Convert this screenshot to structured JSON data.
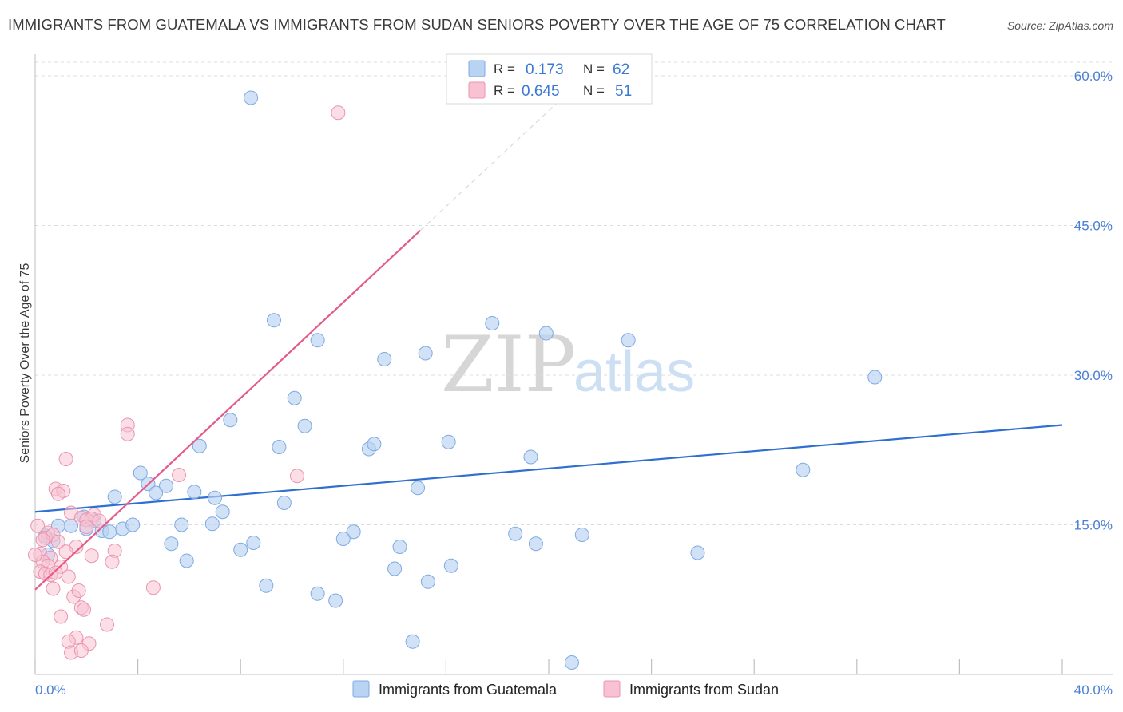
{
  "title": "IMMIGRANTS FROM GUATEMALA VS IMMIGRANTS FROM SUDAN SENIORS POVERTY OVER THE AGE OF 75 CORRELATION CHART",
  "source": "Source: ZipAtlas.com",
  "watermark": {
    "part1": "ZIP",
    "part2": "atlas"
  },
  "colors": {
    "guatemala_fill": "#b9d3f2",
    "guatemala_stroke": "#7eaae3",
    "guatemala_line": "#2f6fcf",
    "sudan_fill": "#f8c2d2",
    "sudan_stroke": "#eb94b1",
    "sudan_line": "#e45b8b",
    "tick_label": "#4a7fd6",
    "grid": "#dcdcdc"
  },
  "chart_data": {
    "type": "scatter",
    "title": "IMMIGRANTS FROM GUATEMALA VS IMMIGRANTS FROM SUDAN SENIORS POVERTY OVER THE AGE OF 75 CORRELATION CHART",
    "xlabel": "",
    "ylabel": "Seniors Poverty Over the Age of 75",
    "xlim": [
      0,
      40
    ],
    "ylim": [
      0,
      61.2
    ],
    "x_tick_labels": {
      "min": "0.0%",
      "max": "40.0%"
    },
    "y_ticks": [
      15,
      30,
      45,
      60
    ],
    "y_tick_labels": [
      "15.0%",
      "30.0%",
      "45.0%",
      "60.0%"
    ],
    "legend": {
      "stats": [
        {
          "r_label": "R =",
          "r_value": "0.173",
          "n_label": "N =",
          "n_value": "62"
        },
        {
          "r_label": "R =",
          "r_value": "0.645",
          "n_label": "N =",
          "n_value": "51"
        }
      ],
      "bottom": [
        "Immigrants from Guatemala",
        "Immigrants from Sudan"
      ]
    },
    "series": [
      {
        "name": "Immigrants from Guatemala",
        "trend": {
          "x0": 0,
          "y0": 16.3,
          "x1": 40,
          "y1": 25.0
        },
        "points": [
          [
            8.4,
            57.8
          ],
          [
            9.3,
            35.5
          ],
          [
            11.0,
            33.5
          ],
          [
            17.8,
            35.2
          ],
          [
            19.9,
            34.2
          ],
          [
            23.1,
            33.5
          ],
          [
            13.6,
            31.6
          ],
          [
            15.2,
            32.2
          ],
          [
            32.7,
            29.8
          ],
          [
            10.1,
            27.7
          ],
          [
            7.6,
            25.5
          ],
          [
            10.5,
            24.9
          ],
          [
            6.4,
            22.9
          ],
          [
            9.5,
            22.8
          ],
          [
            13.0,
            22.6
          ],
          [
            13.2,
            23.1
          ],
          [
            16.1,
            23.3
          ],
          [
            19.3,
            21.8
          ],
          [
            29.9,
            20.5
          ],
          [
            4.1,
            20.2
          ],
          [
            4.4,
            19.1
          ],
          [
            5.1,
            18.9
          ],
          [
            4.7,
            18.2
          ],
          [
            3.1,
            17.8
          ],
          [
            6.2,
            18.3
          ],
          [
            7.0,
            17.7
          ],
          [
            9.7,
            17.2
          ],
          [
            14.9,
            18.7
          ],
          [
            7.3,
            16.3
          ],
          [
            1.9,
            15.8
          ],
          [
            2.3,
            15.4
          ],
          [
            1.4,
            14.9
          ],
          [
            0.9,
            14.9
          ],
          [
            2.6,
            14.4
          ],
          [
            2.0,
            14.6
          ],
          [
            2.9,
            14.3
          ],
          [
            3.4,
            14.6
          ],
          [
            3.8,
            15.0
          ],
          [
            5.7,
            15.0
          ],
          [
            6.9,
            15.1
          ],
          [
            0.4,
            13.9
          ],
          [
            0.7,
            13.4
          ],
          [
            12.4,
            14.3
          ],
          [
            8.5,
            13.2
          ],
          [
            12.0,
            13.6
          ],
          [
            18.7,
            14.1
          ],
          [
            21.3,
            14.0
          ],
          [
            5.3,
            13.1
          ],
          [
            8.0,
            12.5
          ],
          [
            14.2,
            12.8
          ],
          [
            19.5,
            13.1
          ],
          [
            25.8,
            12.2
          ],
          [
            5.9,
            11.4
          ],
          [
            14.0,
            10.6
          ],
          [
            16.2,
            10.9
          ],
          [
            15.3,
            9.3
          ],
          [
            9.0,
            8.9
          ],
          [
            11.0,
            8.1
          ],
          [
            11.7,
            7.4
          ],
          [
            14.7,
            3.3
          ],
          [
            20.9,
            1.2
          ],
          [
            0.5,
            12.0
          ]
        ]
      },
      {
        "name": "Immigrants from Sudan",
        "trend": {
          "x0": 0,
          "y0": 8.5,
          "x1": 15.0,
          "y1": 44.5
        },
        "trend_dashed": {
          "x0": 15.0,
          "y0": 44.5,
          "x1": 20.5,
          "y1": 57.7
        },
        "points": [
          [
            11.8,
            56.3
          ],
          [
            3.6,
            25.0
          ],
          [
            3.6,
            24.1
          ],
          [
            1.2,
            21.6
          ],
          [
            5.6,
            20.0
          ],
          [
            10.2,
            19.9
          ],
          [
            0.8,
            18.6
          ],
          [
            1.1,
            18.4
          ],
          [
            0.9,
            18.1
          ],
          [
            1.4,
            16.2
          ],
          [
            2.3,
            16.0
          ],
          [
            1.8,
            15.7
          ],
          [
            2.0,
            15.5
          ],
          [
            2.2,
            15.6
          ],
          [
            2.5,
            15.4
          ],
          [
            2.0,
            14.8
          ],
          [
            0.1,
            14.9
          ],
          [
            0.5,
            14.2
          ],
          [
            0.4,
            13.7
          ],
          [
            0.7,
            14.0
          ],
          [
            0.3,
            13.5
          ],
          [
            0.9,
            13.3
          ],
          [
            1.6,
            12.8
          ],
          [
            1.2,
            12.3
          ],
          [
            3.1,
            12.4
          ],
          [
            0.2,
            12.1
          ],
          [
            0.6,
            11.7
          ],
          [
            0.3,
            11.3
          ],
          [
            2.2,
            11.9
          ],
          [
            3.0,
            11.3
          ],
          [
            0.5,
            10.9
          ],
          [
            1.0,
            10.8
          ],
          [
            0.2,
            10.3
          ],
          [
            0.4,
            10.1
          ],
          [
            0.6,
            10.0
          ],
          [
            0.8,
            10.2
          ],
          [
            1.3,
            9.8
          ],
          [
            0.7,
            8.6
          ],
          [
            4.6,
            8.7
          ],
          [
            1.5,
            7.8
          ],
          [
            1.7,
            8.4
          ],
          [
            1.8,
            6.7
          ],
          [
            1.9,
            6.5
          ],
          [
            1.0,
            5.8
          ],
          [
            2.8,
            5.0
          ],
          [
            1.6,
            3.7
          ],
          [
            1.3,
            3.3
          ],
          [
            2.1,
            3.1
          ],
          [
            1.4,
            2.2
          ],
          [
            1.8,
            2.4
          ],
          [
            0.0,
            12.0
          ]
        ]
      }
    ]
  }
}
